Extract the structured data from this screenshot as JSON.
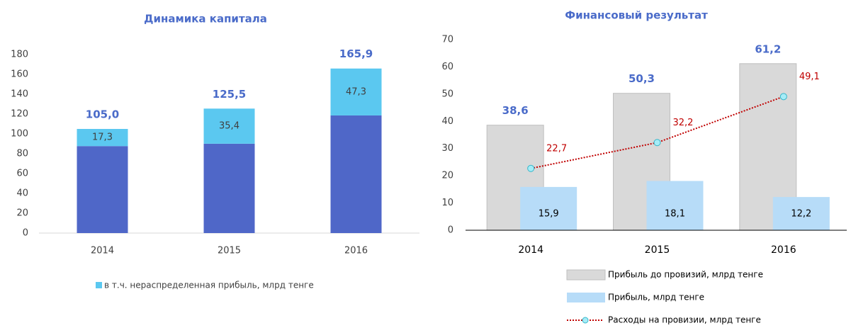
{
  "chart_data": [
    {
      "type": "stacked_bar",
      "title": "Динамика капитала",
      "categories": [
        "2014",
        "2015",
        "2016"
      ],
      "ylim": [
        0,
        180
      ],
      "yticks": [
        0,
        20,
        40,
        60,
        80,
        100,
        120,
        140,
        160,
        180
      ],
      "series": [
        {
          "color": "#4f67c8",
          "values": [
            87.7,
            90.1,
            118.6
          ]
        },
        {
          "name": "в т.ч. нераспределенная прибыль, млрд тенге",
          "color": "#5bc8f0",
          "values": [
            17.3,
            35.4,
            47.3
          ],
          "value_labels": [
            "17,3",
            "35,4",
            "47,3"
          ]
        }
      ],
      "totals": [
        105.0,
        125.5,
        165.9
      ],
      "total_labels": [
        "105,0",
        "125,5",
        "165,9"
      ]
    },
    {
      "type": "bar_line",
      "title": "Финансовый результат",
      "categories": [
        "2014",
        "2015",
        "2016"
      ],
      "ylim": [
        0,
        70
      ],
      "yticks": [
        0,
        10,
        20,
        30,
        40,
        50,
        60,
        70
      ],
      "series": [
        {
          "name": "Прибыль до провизий, млрд тенге",
          "color": "#d9d9d9",
          "values": [
            38.6,
            50.3,
            61.2
          ],
          "value_labels": [
            "38,6",
            "50,3",
            "61,2"
          ]
        },
        {
          "name": "Прибыль, млрд тенге",
          "color": "#b7dcf8",
          "values": [
            15.9,
            18.1,
            12.2
          ],
          "value_labels": [
            "15,9",
            "18,1",
            "12,2"
          ]
        },
        {
          "name": "Расходы на провизии, млрд тенге",
          "color": "#c00000",
          "type": "line",
          "values": [
            22.7,
            32.2,
            49.1
          ],
          "value_labels": [
            "22,7",
            "32,2",
            "49,1"
          ]
        }
      ]
    }
  ]
}
